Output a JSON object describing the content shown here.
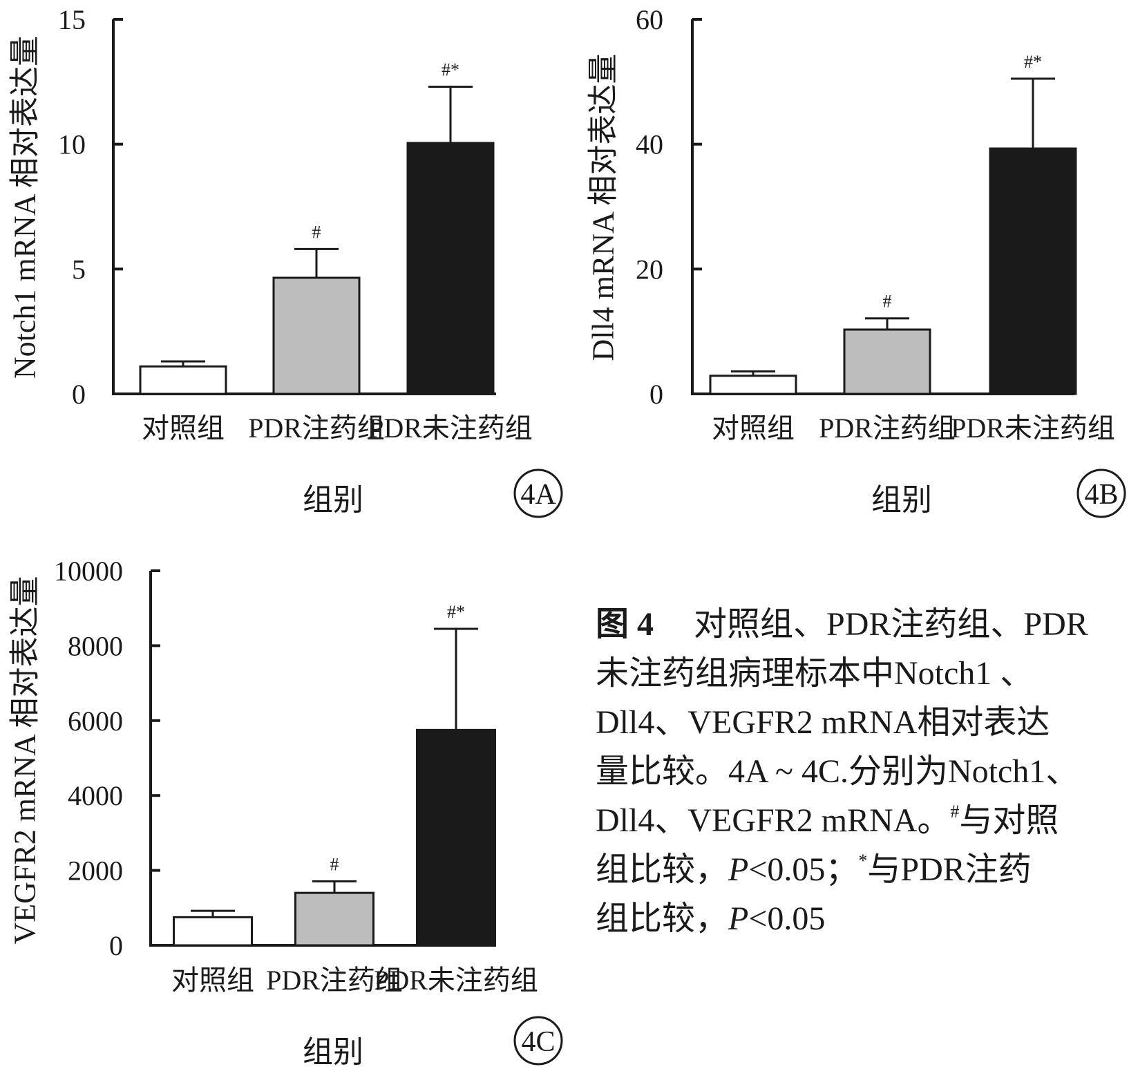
{
  "chart_data": [
    {
      "id": "4A",
      "type": "bar",
      "panel_label": "4A",
      "ylabel": "Notch1 mRNA 相对表达量",
      "xlabel": "组别",
      "categories": [
        "对照组",
        "PDR注药组",
        "PDR未注药组"
      ],
      "values": [
        1.1,
        4.65,
        10.05
      ],
      "errors": [
        0.2,
        1.15,
        2.25
      ],
      "significance": [
        "",
        "#",
        "#*"
      ],
      "bar_colors": [
        "#ffffff",
        "#bdbdbd",
        "#1a1a1a"
      ],
      "ylim": [
        0,
        15
      ],
      "yticks": [
        0,
        5,
        10,
        15
      ],
      "ytick_labels": [
        "0",
        "5",
        "10",
        "15"
      ]
    },
    {
      "id": "4B",
      "type": "bar",
      "panel_label": "4B",
      "ylabel": "Dll4 mRNA 相对表达量",
      "xlabel": "组别",
      "categories": [
        "对照组",
        "PDR注药组",
        "PDR未注药组"
      ],
      "values": [
        2.9,
        10.3,
        39.3
      ],
      "errors": [
        0.7,
        1.8,
        11.2
      ],
      "significance": [
        "",
        "#",
        "#*"
      ],
      "bar_colors": [
        "#ffffff",
        "#bdbdbd",
        "#1a1a1a"
      ],
      "ylim": [
        0,
        60
      ],
      "yticks": [
        0,
        20,
        40,
        60
      ],
      "ytick_labels": [
        "0",
        "20",
        "40",
        "60"
      ]
    },
    {
      "id": "4C",
      "type": "bar",
      "panel_label": "4C",
      "ylabel": "VEGFR2 mRNA 相对表达量",
      "xlabel": "组别",
      "categories": [
        "对照组",
        "PDR注药组",
        "PDR未注药组"
      ],
      "values": [
        750,
        1400,
        5750
      ],
      "errors": [
        170,
        310,
        2700
      ],
      "significance": [
        "",
        "#",
        "#*"
      ],
      "bar_colors": [
        "#ffffff",
        "#bdbdbd",
        "#1a1a1a"
      ],
      "ylim": [
        0,
        10000
      ],
      "yticks": [
        0,
        2000,
        4000,
        6000,
        8000,
        10000
      ],
      "ytick_labels": [
        "0",
        "2000",
        "4000",
        "6000",
        "8000",
        "10000"
      ]
    }
  ],
  "caption": {
    "figure_number": "图 4",
    "line1": "对照组、PDR注药组、PDR",
    "line2": "未注药组病理标本中Notch1 、",
    "line3": "Dll4、VEGFR2 mRNA相对表达",
    "line4": "量比较。4A ~ 4C.分别为Notch1、",
    "line5_pre": "Dll4、VEGFR2 mRNA。",
    "hash_mark": "#",
    "line5_post": "与对照",
    "line6_pre": "组比较，",
    "p_symbol": "P",
    "p_value": "<0.05；",
    "star_mark": "*",
    "line6_post": "与PDR注药",
    "line7_pre": "组比较，",
    "line7_p_value": "<0.05"
  }
}
